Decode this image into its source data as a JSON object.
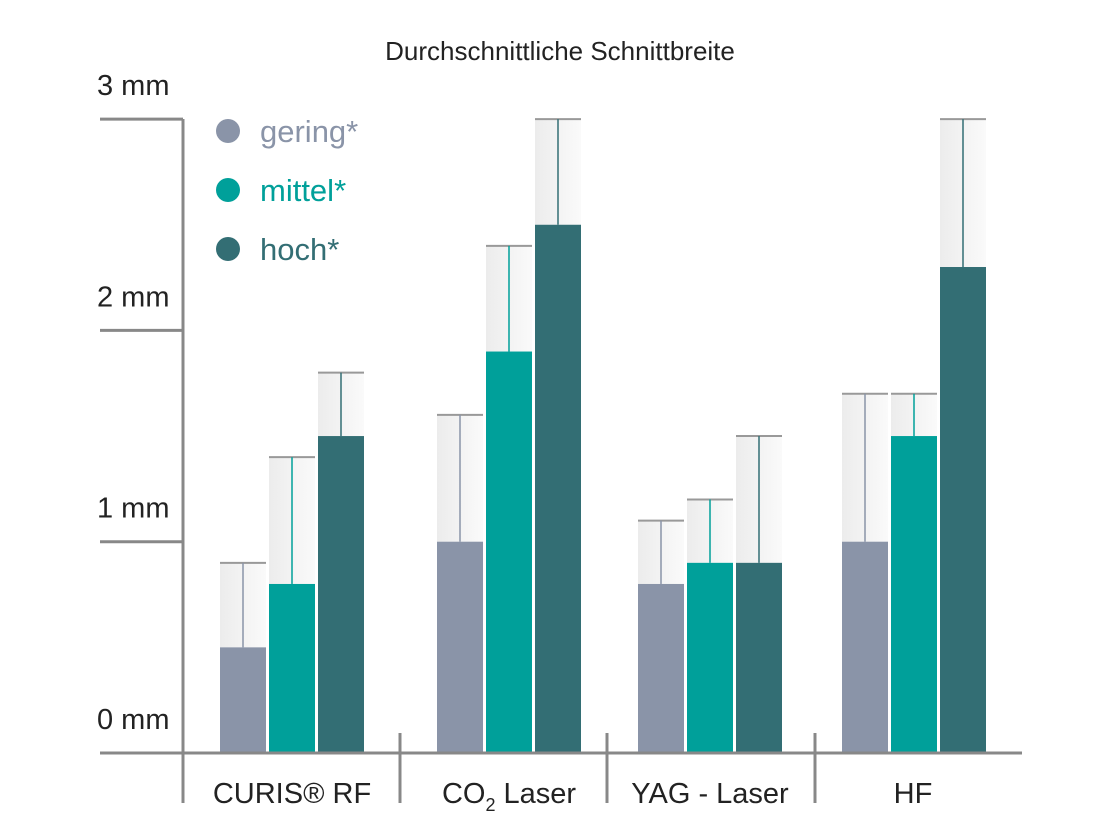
{
  "chart_data": {
    "type": "bar",
    "title": "Durchschnittliche Schnittbreite",
    "categories": [
      "CURIS® RF",
      "CO2 Laser",
      "YAG - Laser",
      "HF"
    ],
    "highlight_category_color": "#00a09a",
    "y_ticks": [
      "0 mm",
      "1 mm",
      "2 mm",
      "3 mm"
    ],
    "ylim": [
      0,
      3
    ],
    "unit": "mm",
    "legend_position": "top-left",
    "series": [
      {
        "name": "gering*",
        "color": "#8a94a8",
        "values": [
          0.5,
          1.0,
          0.8,
          1.0
        ],
        "upper": [
          0.9,
          1.6,
          1.1,
          1.7
        ]
      },
      {
        "name": "mittel*",
        "color": "#00a09a",
        "values": [
          0.8,
          1.9,
          0.9,
          1.5
        ],
        "upper": [
          1.4,
          2.4,
          1.2,
          1.7
        ]
      },
      {
        "name": "hoch*",
        "color": "#336e74",
        "values": [
          1.5,
          2.5,
          0.9,
          2.3
        ],
        "upper": [
          1.8,
          3.0,
          1.5,
          3.0
        ]
      }
    ]
  }
}
